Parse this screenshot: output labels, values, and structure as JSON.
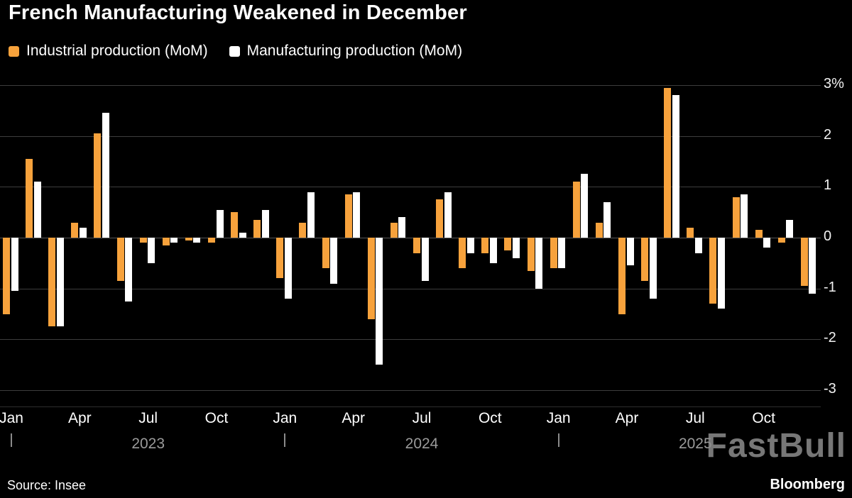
{
  "page": {
    "background": "#000000"
  },
  "title": "French Manufacturing Weakened in December",
  "legend": {
    "items": [
      {
        "label": "Industrial production (MoM)",
        "color": "#F7A23C"
      },
      {
        "label": "Manufacturing production (MoM)",
        "color": "#FFFFFF"
      }
    ]
  },
  "source": "Source: Insee",
  "watermark": "FastBull",
  "brand": "Bloomberg",
  "chart_data": {
    "type": "bar",
    "title": "French Manufacturing Weakened in December",
    "categories": [
      "Jan 2023",
      "Feb 2023",
      "Mar 2023",
      "Apr 2023",
      "May 2023",
      "Jun 2023",
      "Jul 2023",
      "Aug 2023",
      "Sep 2023",
      "Oct 2023",
      "Nov 2023",
      "Dec 2023",
      "Jan 2024",
      "Feb 2024",
      "Mar 2024",
      "Apr 2024",
      "May 2024",
      "Jun 2024",
      "Jul 2024",
      "Aug 2024",
      "Sep 2024",
      "Oct 2024",
      "Nov 2024",
      "Dec 2024",
      "Jan 2025",
      "Feb 2025",
      "Mar 2025",
      "Apr 2025",
      "May 2025",
      "Jun 2025",
      "Jul 2025",
      "Aug 2025",
      "Sep 2025",
      "Oct 2025",
      "Nov 2025",
      "Dec 2025"
    ],
    "series": [
      {
        "name": "Industrial production (MoM)",
        "color": "#F7A23C",
        "values": [
          -1.5,
          1.55,
          -1.75,
          0.3,
          2.05,
          -0.85,
          -0.1,
          -0.15,
          -0.05,
          -0.1,
          0.5,
          0.35,
          -0.8,
          0.3,
          -0.6,
          0.85,
          -1.6,
          0.3,
          -0.3,
          0.75,
          -0.6,
          -0.3,
          -0.25,
          -0.65,
          -0.6,
          1.1,
          0.3,
          -1.5,
          -0.85,
          2.95,
          0.2,
          -1.3,
          0.8,
          0.15,
          -0.1,
          -0.95
        ]
      },
      {
        "name": "Manufacturing production (MoM)",
        "color": "#FFFFFF",
        "values": [
          -1.05,
          1.1,
          -1.75,
          0.2,
          2.45,
          -1.25,
          -0.5,
          -0.1,
          -0.1,
          0.55,
          0.1,
          0.55,
          -1.2,
          0.9,
          -0.9,
          0.9,
          -2.5,
          0.4,
          -0.85,
          0.9,
          -0.3,
          -0.5,
          -0.4,
          -1.0,
          -0.6,
          1.25,
          0.7,
          -0.55,
          -1.2,
          2.8,
          -0.3,
          -1.4,
          0.85,
          -0.2,
          0.35,
          -1.1
        ]
      }
    ],
    "ylim": [
      -3,
      3
    ],
    "yticks": [
      3,
      2,
      1,
      0,
      -1,
      -2,
      -3
    ],
    "ytick_labels": [
      "3%",
      "2",
      "1",
      "0",
      "-1",
      "-2",
      "-3"
    ],
    "xticks": [
      "Jan",
      "Apr",
      "Jul",
      "Oct",
      "Jan",
      "Apr",
      "Jul",
      "Oct",
      "Jan",
      "Apr",
      "Jul",
      "Oct"
    ],
    "years": [
      "2023",
      "2024",
      "2025"
    ],
    "grid": "horizontal",
    "legend_position": "top",
    "background": "#000000"
  }
}
